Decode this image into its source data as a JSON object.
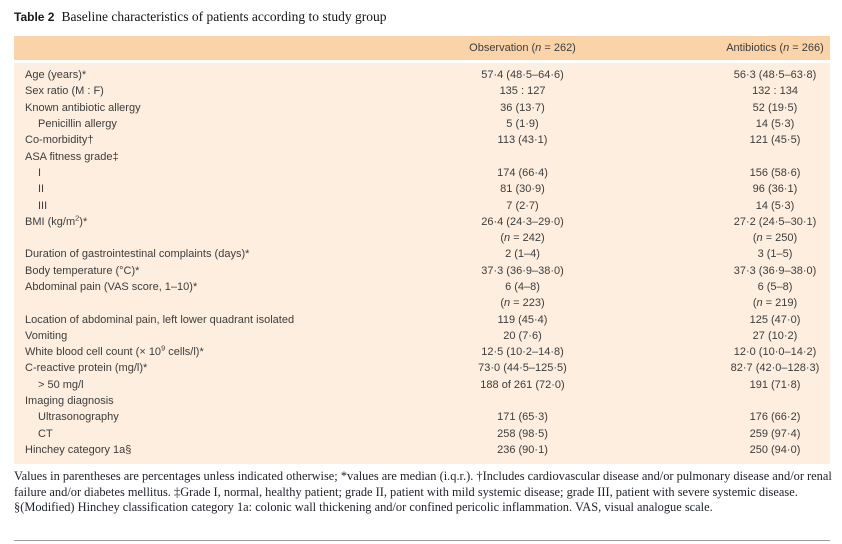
{
  "title": {
    "label": "Table 2",
    "text": "Baseline characteristics of patients according to study group"
  },
  "table": {
    "columns": [
      {
        "key": "observation",
        "label": "Observation (n = 262)"
      },
      {
        "key": "antibiotics",
        "label": "Antibiotics (n = 266)"
      }
    ],
    "rows": [
      {
        "label": "Age (years)*",
        "sup": "",
        "end": "",
        "indent": false,
        "obs": "57·4 (48·5–64·6)",
        "anti": "56·3 (48·5–63·8)"
      },
      {
        "label": "Sex ratio (M : F)",
        "sup": "",
        "end": "",
        "indent": false,
        "obs": "135 : 127",
        "anti": "132 : 134"
      },
      {
        "label": "Known antibiotic allergy",
        "sup": "",
        "end": "",
        "indent": false,
        "obs": "36 (13·7)",
        "anti": "52 (19·5)"
      },
      {
        "label": "Penicillin allergy",
        "sup": "",
        "end": "",
        "indent": true,
        "obs": "5 (1·9)",
        "anti": "14 (5·3)"
      },
      {
        "label": "Co-morbidity†",
        "sup": "",
        "end": "",
        "indent": false,
        "obs": "113 (43·1)",
        "anti": "121 (45·5)"
      },
      {
        "label": "ASA fitness grade‡",
        "sup": "",
        "end": "",
        "indent": false,
        "obs": "",
        "anti": ""
      },
      {
        "label": "I",
        "sup": "",
        "end": "",
        "indent": true,
        "obs": "174 (66·4)",
        "anti": "156 (58·6)"
      },
      {
        "label": "II",
        "sup": "",
        "end": "",
        "indent": true,
        "obs": "81 (30·9)",
        "anti": "96 (36·1)"
      },
      {
        "label": "III",
        "sup": "",
        "end": "",
        "indent": true,
        "obs": "7 (2·7)",
        "anti": "14 (5·3)"
      },
      {
        "label": "BMI (kg/m",
        "sup": "2",
        "end": ")*",
        "indent": false,
        "obs": "26·4 (24·3–29·0)",
        "anti": "27·2 (24·5–30·1)"
      },
      {
        "label": "",
        "sup": "",
        "end": "",
        "indent": false,
        "obs": "(n = 242)",
        "anti": "(n = 250)"
      },
      {
        "label": "Duration of gastrointestinal complaints (days)*",
        "sup": "",
        "end": "",
        "indent": false,
        "obs": "2 (1–4)",
        "anti": "3 (1–5)"
      },
      {
        "label": "Body temperature (°C)*",
        "sup": "",
        "end": "",
        "indent": false,
        "obs": "37·3 (36·9–38·0)",
        "anti": "37·3 (36·9–38·0)"
      },
      {
        "label": "Abdominal pain (VAS score, 1–10)*",
        "sup": "",
        "end": "",
        "indent": false,
        "obs": "6 (4–8)",
        "anti": "6 (5–8)"
      },
      {
        "label": "",
        "sup": "",
        "end": "",
        "indent": false,
        "obs": "(n = 223)",
        "anti": "(n = 219)"
      },
      {
        "label": "Location of abdominal pain, left lower quadrant isolated",
        "sup": "",
        "end": "",
        "indent": false,
        "obs": "119 (45·4)",
        "anti": "125 (47·0)"
      },
      {
        "label": "Vomiting",
        "sup": "",
        "end": "",
        "indent": false,
        "obs": "20 (7·6)",
        "anti": "27 (10·2)"
      },
      {
        "label": "White blood cell count (× 10",
        "sup": "9",
        "end": " cells/l)*",
        "indent": false,
        "obs": "12·5 (10·2–14·8)",
        "anti": "12·0 (10·0–14·2)"
      },
      {
        "label": "C-reactive protein (mg/l)*",
        "sup": "",
        "end": "",
        "indent": false,
        "obs": "73·0 (44·5–125·5)",
        "anti": "82·7 (42·0–128·3)"
      },
      {
        "label": "> 50 mg/l",
        "sup": "",
        "end": "",
        "indent": true,
        "obs": "188 of 261 (72·0)",
        "anti": "191 (71·8)"
      },
      {
        "label": "Imaging diagnosis",
        "sup": "",
        "end": "",
        "indent": false,
        "obs": "",
        "anti": ""
      },
      {
        "label": "Ultrasonography",
        "sup": "",
        "end": "",
        "indent": true,
        "obs": "171 (65·3)",
        "anti": "176 (66·2)"
      },
      {
        "label": "CT",
        "sup": "",
        "end": "",
        "indent": true,
        "obs": "258 (98·5)",
        "anti": "259 (97·4)"
      },
      {
        "label": "Hinchey category 1a§",
        "sup": "",
        "end": "",
        "indent": false,
        "obs": "236 (90·1)",
        "anti": "250 (94·0)"
      }
    ]
  },
  "footnote": {
    "text": "Values in parentheses are percentages unless indicated otherwise; *values are median (i.q.r.). †Includes cardiovascular disease and/or pulmonary disease and/or renal failure and/or diabetes mellitus. ‡Grade I, normal, healthy patient; grade II, patient with mild systemic disease; grade III, patient with severe systemic disease. §(Modified) Hinchey classification category 1a: colonic wall thickening and/or confined pericolic inflammation. VAS, visual analogue scale."
  },
  "colors": {
    "header_bg": "#fbd3a9",
    "body_bg": "#fdeedf",
    "rule": "#9b9b9b",
    "table_text": "#3d3d3d"
  }
}
